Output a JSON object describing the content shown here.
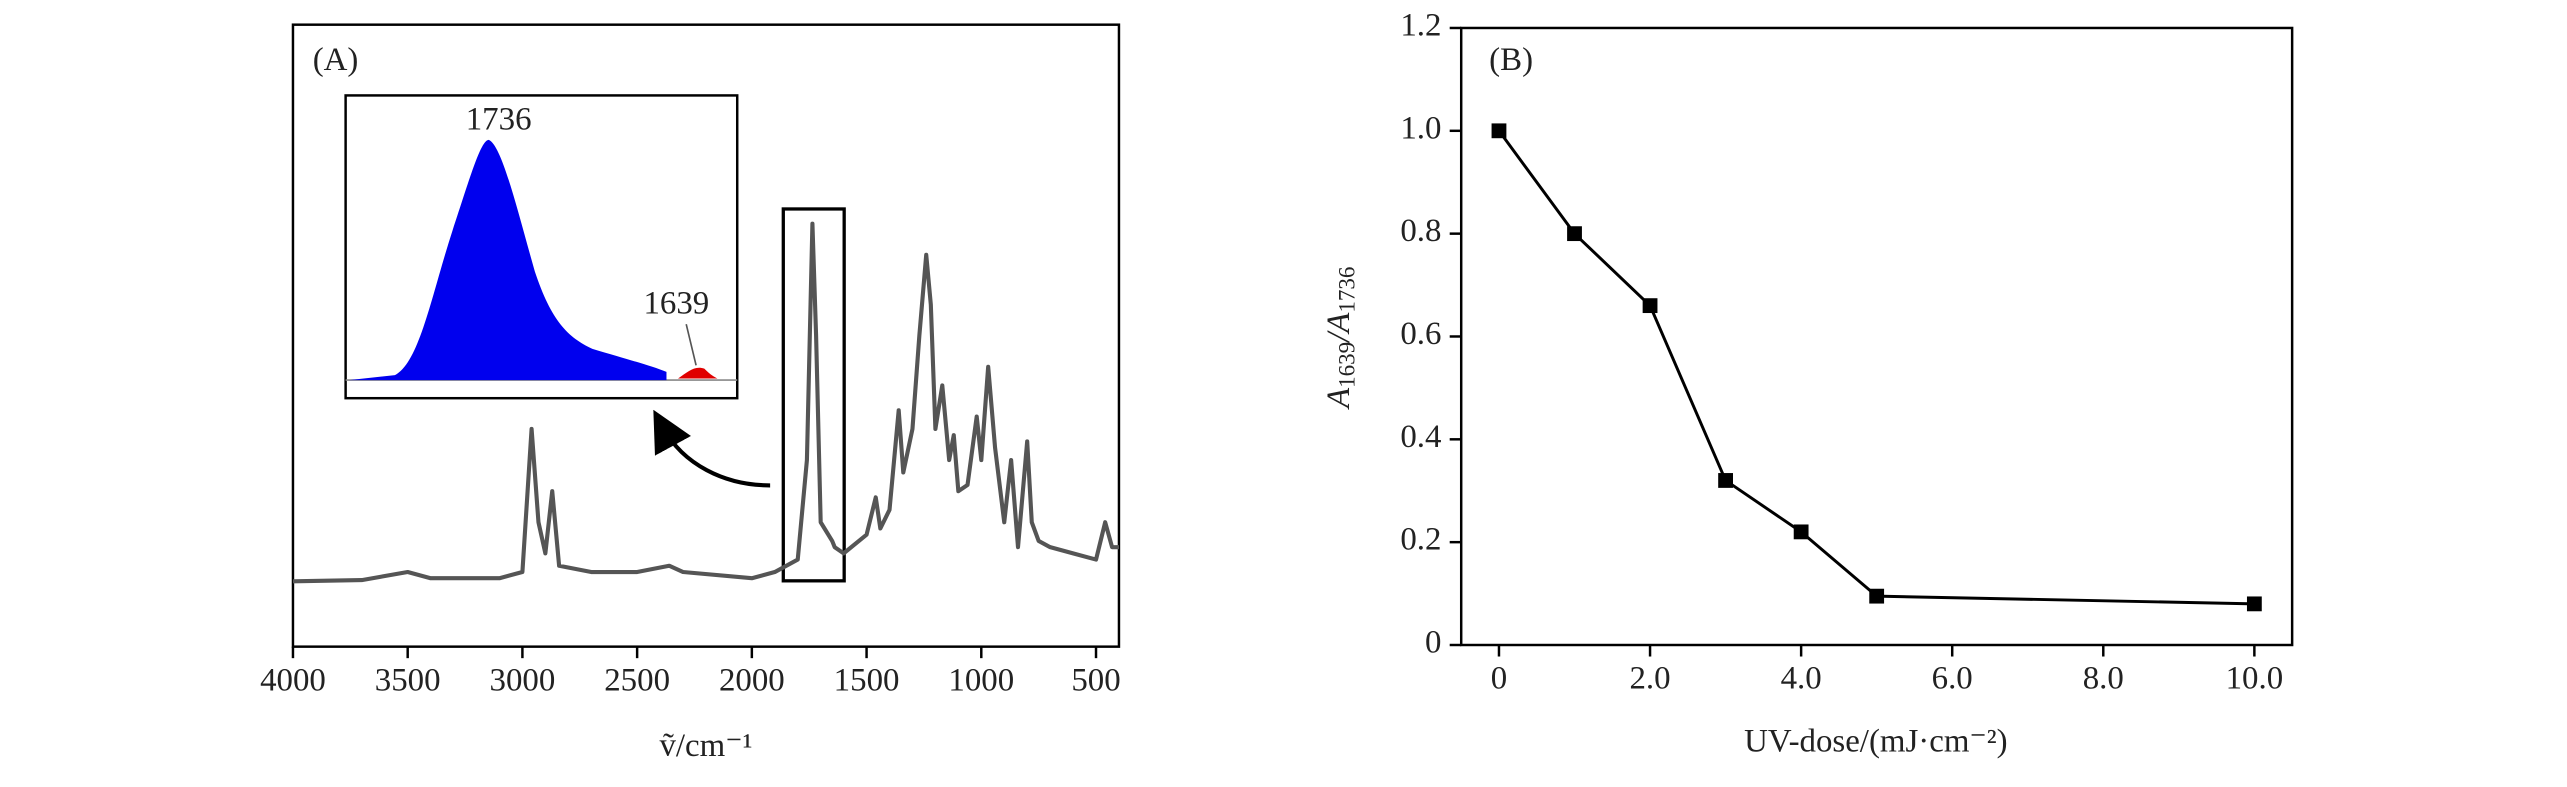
{
  "chart_data": [
    {
      "type": "line",
      "title": "(A)",
      "xlabel": "ṽ/cm⁻¹",
      "annotations": [
        "1736",
        "1639"
      ],
      "xlim": [
        4000,
        400
      ],
      "ylim": [
        0,
        1
      ],
      "xticks": [
        4000,
        3500,
        3000,
        2500,
        2000,
        1500,
        1000,
        500
      ],
      "x": [
        4000,
        3700,
        3500,
        3400,
        3100,
        3000,
        2960,
        2930,
        2900,
        2870,
        2840,
        2700,
        2500,
        2360,
        2300,
        2000,
        1900,
        1800,
        1760,
        1736,
        1720,
        1700,
        1650,
        1639,
        1600,
        1500,
        1460,
        1440,
        1400,
        1380,
        1360,
        1340,
        1300,
        1270,
        1240,
        1220,
        1200,
        1170,
        1140,
        1120,
        1100,
        1060,
        1020,
        1000,
        970,
        940,
        900,
        870,
        840,
        800,
        780,
        750,
        700,
        600,
        500,
        460,
        430,
        400
      ],
      "series": [
        {
          "color": "#555555",
          "values": [
            0.105,
            0.107,
            0.12,
            0.11,
            0.11,
            0.12,
            0.35,
            0.2,
            0.15,
            0.25,
            0.13,
            0.12,
            0.12,
            0.13,
            0.12,
            0.11,
            0.12,
            0.14,
            0.3,
            0.68,
            0.5,
            0.2,
            0.17,
            0.16,
            0.15,
            0.18,
            0.24,
            0.19,
            0.22,
            0.3,
            0.38,
            0.28,
            0.35,
            0.5,
            0.63,
            0.55,
            0.35,
            0.42,
            0.3,
            0.34,
            0.25,
            0.26,
            0.37,
            0.3,
            0.45,
            0.32,
            0.2,
            0.3,
            0.16,
            0.33,
            0.2,
            0.17,
            0.16,
            0.15,
            0.14,
            0.2,
            0.16,
            0.16
          ]
        }
      ]
    },
    {
      "type": "line",
      "title": "(B)",
      "xlabel": "UV-dose/(mJ·cm⁻²)",
      "ylabel": [
        "A",
        "1639",
        "/A",
        "1736"
      ],
      "xlim": [
        -0.5,
        10.5
      ],
      "ylim": [
        0,
        1.2
      ],
      "markers": true,
      "xticks": [
        0,
        {
          "value": 2,
          "label": "2.0"
        },
        {
          "value": 4,
          "label": "4.0"
        },
        {
          "value": 6,
          "label": "6.0"
        },
        {
          "value": 8,
          "label": "8.0"
        },
        {
          "value": 10,
          "label": "10.0"
        }
      ],
      "yticks": [
        0,
        0.2,
        0.4,
        0.6,
        0.8,
        {
          "value": 1,
          "label": "1.0"
        },
        1.2
      ],
      "x": [
        0,
        1,
        2,
        3,
        4,
        5,
        10
      ],
      "series": [
        {
          "color": "#000000",
          "values": [
            1.0,
            0.8,
            0.66,
            0.32,
            0.22,
            0.095,
            0.08
          ]
        }
      ]
    }
  ]
}
